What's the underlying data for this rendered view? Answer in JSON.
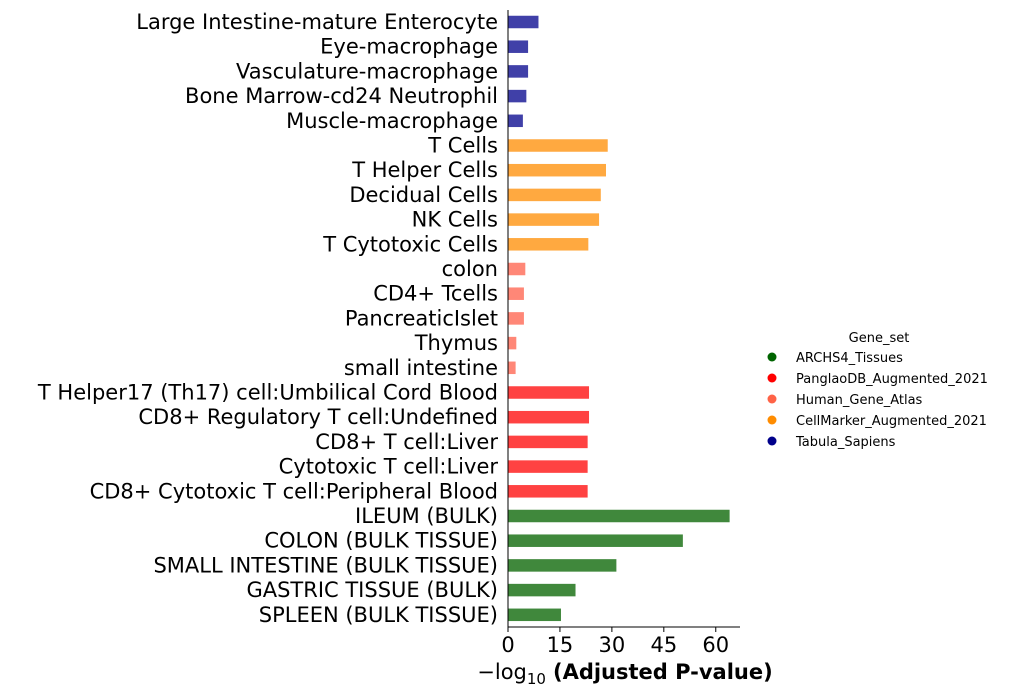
{
  "chart_data": {
    "type": "bar",
    "orientation": "horizontal",
    "title": "",
    "xlabel_prefix": "−log",
    "xlabel_subscript": "10",
    "xlabel_main": "(Adjusted P-value)",
    "xlim": [
      0,
      67
    ],
    "xticks": [
      0,
      15,
      30,
      45,
      60
    ],
    "categories": [
      "Large Intestine-mature Enterocyte",
      "Eye-macrophage",
      "Vasculature-macrophage",
      "Bone Marrow-cd24 Neutrophil",
      "Muscle-macrophage",
      "T Cells",
      "T Helper Cells",
      "Decidual Cells",
      "NK Cells",
      "T Cytotoxic Cells",
      "colon",
      "CD4+ Tcells",
      "PancreaticIslet",
      "Thymus",
      "small intestine",
      "T Helper17 (Th17) cell:Umbilical Cord Blood",
      "CD8+ Regulatory T cell:Undefined",
      "CD8+ T cell:Liver",
      "Cytotoxic T cell:Liver",
      "CD8+ Cytotoxic T cell:Peripheral Blood",
      "ILEUM (BULK)",
      "COLON (BULK TISSUE)",
      "SMALL INTESTINE (BULK TISSUE)",
      "GASTRIC TISSUE (BULK)",
      "SPLEEN (BULK TISSUE)"
    ],
    "values": [
      8.8,
      5.8,
      5.8,
      5.3,
      4.3,
      28.8,
      28.3,
      26.8,
      26.3,
      23.2,
      5.0,
      4.6,
      4.6,
      2.4,
      2.2,
      23.4,
      23.4,
      23.0,
      23.0,
      23.0,
      64.0,
      50.5,
      31.3,
      19.5,
      15.3
    ],
    "groups": [
      "Tabula_Sapiens",
      "Tabula_Sapiens",
      "Tabula_Sapiens",
      "Tabula_Sapiens",
      "Tabula_Sapiens",
      "CellMarker_Augmented_2021",
      "CellMarker_Augmented_2021",
      "CellMarker_Augmented_2021",
      "CellMarker_Augmented_2021",
      "CellMarker_Augmented_2021",
      "Human_Gene_Atlas",
      "Human_Gene_Atlas",
      "Human_Gene_Atlas",
      "Human_Gene_Atlas",
      "Human_Gene_Atlas",
      "PanglaoDB_Augmented_2021",
      "PanglaoDB_Augmented_2021",
      "PanglaoDB_Augmented_2021",
      "PanglaoDB_Augmented_2021",
      "PanglaoDB_Augmented_2021",
      "ARCHS4_Tissues",
      "ARCHS4_Tissues",
      "ARCHS4_Tissues",
      "ARCHS4_Tissues",
      "ARCHS4_Tissues"
    ],
    "group_bar_colors": {
      "ARCHS4_Tissues": "#40883c",
      "PanglaoDB_Augmented_2021": "#ff4242",
      "Human_Gene_Atlas": "#ff8777",
      "CellMarker_Augmented_2021": "#ffa940",
      "Tabula_Sapiens": "#4040a8"
    },
    "legend": {
      "title": "Gene_set",
      "placement": "right",
      "entries": [
        {
          "label": "ARCHS4_Tissues",
          "color": "#006400"
        },
        {
          "label": "PanglaoDB_Augmented_2021",
          "color": "#ff0000"
        },
        {
          "label": "Human_Gene_Atlas",
          "color": "#ff6347"
        },
        {
          "label": "CellMarker_Augmented_2021",
          "color": "#ff8c00"
        },
        {
          "label": "Tabula_Sapiens",
          "color": "#00008b"
        }
      ]
    },
    "grid": false
  }
}
